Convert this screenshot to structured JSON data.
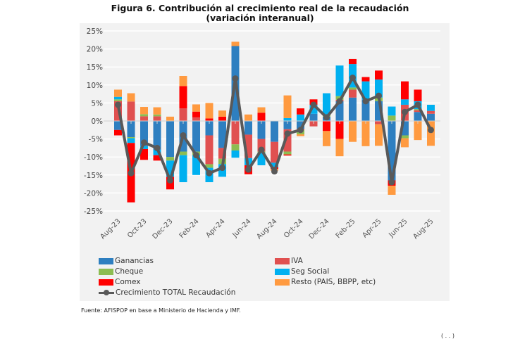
{
  "title_line1": "Figura 6.  Contribución al crecimiento real de la recaudación",
  "title_line2": "(variación interanual)",
  "source": "Fuente: AFISPOP en base a Ministerio de Hacienda y IMF.",
  "colors": {
    "Ganancias": "#2e7fc0",
    "IVA": "#e05050",
    "Cheque": "#8cbd52",
    "Seg Social": "#00b0f0",
    "Comex": "#ff0000",
    "Resto": "#ff9a40",
    "Total": "#595959",
    "panel": "#f2f2f2"
  },
  "legend": [
    {
      "key": "Ganancias",
      "label": "Ganancias"
    },
    {
      "key": "IVA",
      "label": "IVA"
    },
    {
      "key": "Cheque",
      "label": "Cheque"
    },
    {
      "key": "Seg Social",
      "label": "Seg Social"
    },
    {
      "key": "Comex",
      "label": "Comex"
    },
    {
      "key": "Resto",
      "label": "Resto (PAIS, BBPP, etc)"
    },
    {
      "key": "Total",
      "label": "Crecimiento TOTAL Recaudación"
    }
  ],
  "chart_data": {
    "type": "bar",
    "stacked": true,
    "title": "Figura 6. Contribución al crecimiento real de la recaudación (variación interanual)",
    "xlabel": "",
    "ylabel": "",
    "ylim": [
      -25,
      25
    ],
    "yticks": [
      25,
      20,
      15,
      10,
      5,
      0,
      -5,
      -10,
      -15,
      -20,
      -25
    ],
    "ytick_labels": [
      "25%",
      "20%",
      "15%",
      "10%",
      "5%",
      "0%",
      "-5%",
      "-10%",
      "-15%",
      "-20%",
      "-25%"
    ],
    "grid": true,
    "legend_position": "bottom",
    "categories": [
      "Aug-23",
      "Sep-23",
      "Oct-23",
      "Nov-23",
      "Dec-23",
      "Jan-24",
      "Feb-24",
      "Mar-24",
      "Apr-24",
      "May-24",
      "Jun-24",
      "Jul-24",
      "Aug-24",
      "Sep-24",
      "Oct-24",
      "Nov-24",
      "Dec-24",
      "Jan-25",
      "Feb-25",
      "Mar-25",
      "Apr-25",
      "May-25",
      "Jun-25",
      "Jul-25",
      "Aug-25"
    ],
    "xtick_labels": [
      "Aug-23",
      "Oct-23",
      "Dec-23",
      "Feb-24",
      "Apr-24",
      "Jun-24",
      "Aug-24",
      "Oct-24",
      "Dec-24",
      "Feb-25",
      "Apr-25",
      "Jun-25",
      "Aug-25"
    ],
    "series": [
      {
        "name": "Ganancias",
        "values": [
          -2.5,
          -4.5,
          -7,
          -8,
          -10,
          -8.5,
          -8.5,
          -4,
          -7.5,
          20.8,
          -3.8,
          -5,
          -5.8,
          -2.3,
          -2.2,
          2,
          1.2,
          5.5,
          6.5,
          6,
          5.5,
          -16.5,
          -4,
          2.5,
          2
        ]
      },
      {
        "name": "IVA",
        "values": [
          5.5,
          5.4,
          1.3,
          1.3,
          0,
          3.5,
          1,
          -8,
          -3,
          -6.5,
          -6.5,
          -3.5,
          -5.8,
          -6.2,
          -0.3,
          -1.5,
          0,
          0.4,
          2.2,
          0,
          -0.9,
          0,
          4.5,
          0.5,
          0.8
        ]
      },
      {
        "name": "Cheque",
        "values": [
          0.5,
          -0.3,
          0.6,
          0.5,
          -1,
          -1,
          -1,
          -1,
          -1.5,
          -1.7,
          0,
          -0.3,
          0,
          -0.8,
          -1.2,
          0,
          0.5,
          1,
          0.6,
          0,
          1,
          1.5,
          -0.8,
          0.3,
          0
        ]
      },
      {
        "name": "Seg Social",
        "values": [
          0.7,
          -1.3,
          -0.8,
          -1.5,
          -4.5,
          -7.5,
          -5.5,
          -4,
          -3.5,
          -2,
          -2,
          -3.5,
          -1.2,
          0.8,
          1.8,
          2.5,
          6,
          8.5,
          6.5,
          5,
          5,
          2.5,
          1.5,
          2.2,
          1.7
        ]
      },
      {
        "name": "Comex",
        "values": [
          -1.5,
          -16.5,
          -3,
          -1.5,
          -3.5,
          6.2,
          1.6,
          0.7,
          1.2,
          0,
          -2.5,
          2.3,
          -0.5,
          -0.3,
          1.7,
          1.5,
          -2.8,
          -5,
          1.4,
          1.2,
          2.5,
          -1.5,
          5,
          3.2,
          0
        ]
      },
      {
        "name": "Resto",
        "values": [
          2,
          2.3,
          2,
          2,
          1.2,
          2.8,
          2,
          4.3,
          1.7,
          1.2,
          1.8,
          1.5,
          -0.5,
          6.3,
          -0.5,
          0,
          -4.2,
          -4.8,
          -5.8,
          -7,
          -6,
          -2.5,
          -2.5,
          -5.3,
          -6.9
        ]
      }
    ],
    "line_series": {
      "name": "Crecimiento TOTAL Recaudación",
      "values": [
        4.5,
        -14.5,
        -6,
        -7.5,
        -16.5,
        -4,
        -9.5,
        -14.5,
        -13,
        11.8,
        -13.5,
        -8,
        -14,
        -3.5,
        -2.5,
        4.5,
        1,
        5.5,
        12,
        5.5,
        7,
        -17,
        2.5,
        4.5,
        -2.5
      ]
    }
  }
}
